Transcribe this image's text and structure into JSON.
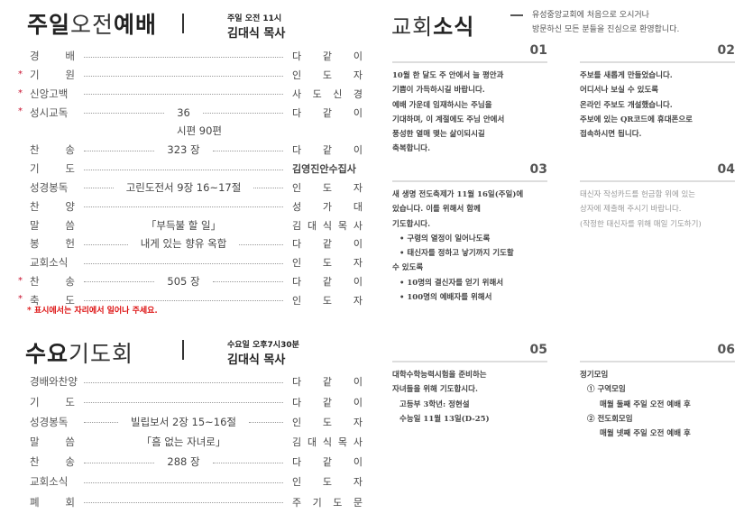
{
  "sunday": {
    "title_bold": "주일",
    "title_light": "오전",
    "title_bold2": "예배",
    "time": "주일 오전 11시",
    "preacher": "김대식 목사",
    "rows": [
      {
        "star": false,
        "label": "경 배",
        "middle": "",
        "right": "다 같 이"
      },
      {
        "star": true,
        "label": "기 원",
        "middle": "",
        "right": "인 도 자"
      },
      {
        "star": true,
        "label": "신앙고백",
        "middle": "",
        "right": "사 도 신 경"
      },
      {
        "star": true,
        "label": "성시교독",
        "middle": "36",
        "right": "다 같 이",
        "sub": "시편 90편"
      },
      {
        "star": false,
        "label": "찬 송",
        "middle": "323 장",
        "right": "다 같 이"
      },
      {
        "star": false,
        "label": "기 도",
        "middle": "",
        "right": "김영진안수집사",
        "bold": true
      },
      {
        "star": false,
        "label": "성경봉독",
        "middle": "고린도전서 9장 16~17절",
        "right": "인 도 자"
      },
      {
        "star": false,
        "label": "찬 양",
        "middle": "",
        "right": "성 가 대"
      },
      {
        "star": false,
        "label": "말 씀",
        "middle": "「부득불 할 일」",
        "right": "김 대 식 목 사",
        "nodots": true
      },
      {
        "star": false,
        "label": "봉 헌",
        "middle": "내게 있는 향유 옥합",
        "right": "다 같 이"
      },
      {
        "star": false,
        "label": "교회소식",
        "middle": "",
        "right": "인 도 자"
      },
      {
        "star": true,
        "label": "찬 송",
        "middle": "505 장",
        "right": "다 같 이"
      },
      {
        "star": true,
        "label": "축 도",
        "middle": "",
        "right": "인 도 자"
      }
    ],
    "note": "* 표시에서는 자리에서 일어나 주세요."
  },
  "wednesday": {
    "title_bold": "수요",
    "title_light": "기도회",
    "time": "수요일 오후7시30분",
    "preacher": "김대식 목사",
    "rows": [
      {
        "label": "경배와찬양",
        "middle": "",
        "right": "다 같 이"
      },
      {
        "label": "기 도",
        "middle": "",
        "right": "다 같 이"
      },
      {
        "label": "성경봉독",
        "middle": "빌립보서 2장 15~16절",
        "right": "인 도 자"
      },
      {
        "label": "말 씀",
        "middle": "「흠 없는 자녀로」",
        "right": "김 대 식 목 사",
        "nodots": true
      },
      {
        "label": "찬 송",
        "middle": "288 장",
        "right": "다 같 이"
      },
      {
        "label": "교회소식",
        "middle": "",
        "right": "인 도 자"
      },
      {
        "label": "폐 회",
        "middle": "",
        "right": "주 기 도 문"
      }
    ]
  },
  "news": {
    "title_light": "교회",
    "title_bold": "소식",
    "welcome": [
      "유성중앙교회에 처음으로 오시거나",
      "방문하신 모든 분들을  진심으로 환영합니다."
    ],
    "items": [
      {
        "num": "01",
        "lines": [
          "10월 한 달도 주 안에서 늘 평안과",
          "기쁨이 가득하시길 바랍니다.",
          "예배 가운데 임재하시는 주님을",
          "기대하며, 이 계절에도 주님 안에서",
          "풍성한 열매 맺는 삶이되시길",
          "축복합니다."
        ]
      },
      {
        "num": "02",
        "lines": [
          "주보를 새롭게 만들었습니다.",
          "어디서나 보실 수 있도록",
          "온라인 주보도 개설했습니다.",
          "주보에 있는 QR코드에 휴대폰으로",
          "접속하시면 됩니다."
        ]
      },
      {
        "num": "03",
        "lines": [
          "새 생명 전도축제가 11월 16일(주일)에",
          "있습니다. 이를 위해서 함께",
          "기도합시다.",
          "• 구령의 열정이 일어나도록",
          "• 태신자를 정하고 낳기까지 기도할",
          "수 있도록",
          "• 10명의 결신자를 얻기 위해서",
          "• 100명의 예배자를 위해서"
        ]
      },
      {
        "num": "04",
        "lines": [
          "태신자 작성카드를 헌금함 위에 있는",
          "상자에 제출해 주시기 바랍니다.",
          "(작정한 태신자를 위해 매일 기도하기)"
        ]
      },
      {
        "num": "05",
        "lines": [
          "대학수학능력시험을 준비하는",
          "자녀들을 위해 기도합시다.",
          "고등부 3학년: 정현설",
          "수능일 11월 13일(D-25)"
        ]
      },
      {
        "num": "06",
        "lines": [
          "정기모임",
          "① 구역모임",
          "매월 둘째 주일 오전 예배 후",
          "② 전도회모임",
          "매월 넷째 주일 오전 예배 후"
        ]
      }
    ]
  }
}
